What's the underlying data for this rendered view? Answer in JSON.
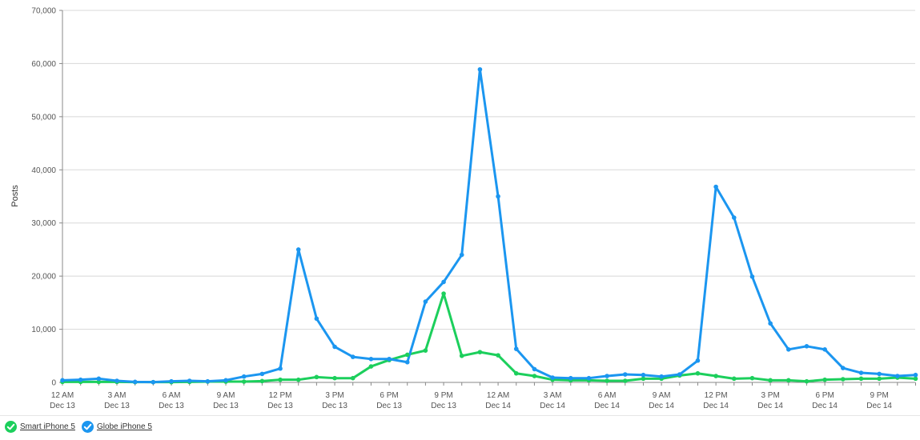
{
  "chart_data": {
    "type": "line",
    "title": "",
    "ylabel": "Posts",
    "xlabel": "",
    "ylim": [
      0,
      70000
    ],
    "yticks": [
      0,
      10000,
      20000,
      30000,
      40000,
      50000,
      60000,
      70000
    ],
    "ytick_labels": [
      "0",
      "10,000",
      "20,000",
      "30,000",
      "40,000",
      "50,000",
      "60,000",
      "70,000"
    ],
    "grid": true,
    "legend_position": "bottom-left",
    "x_hours": [
      0,
      1,
      2,
      3,
      4,
      5,
      6,
      7,
      8,
      9,
      10,
      11,
      12,
      13,
      14,
      15,
      16,
      17,
      18,
      19,
      20,
      21,
      22,
      23,
      24,
      25,
      26,
      27,
      28,
      29,
      30,
      31,
      32,
      33,
      34,
      35,
      36,
      37,
      38,
      39,
      40,
      41,
      42,
      43,
      44,
      45,
      46,
      47
    ],
    "x_tick_labels": [
      {
        "hour": 0,
        "line1": "12 AM",
        "line2": "Dec 13"
      },
      {
        "hour": 3,
        "line1": "3 AM",
        "line2": "Dec 13"
      },
      {
        "hour": 6,
        "line1": "6 AM",
        "line2": "Dec 13"
      },
      {
        "hour": 9,
        "line1": "9 AM",
        "line2": "Dec 13"
      },
      {
        "hour": 12,
        "line1": "12 PM",
        "line2": "Dec 13"
      },
      {
        "hour": 15,
        "line1": "3 PM",
        "line2": "Dec 13"
      },
      {
        "hour": 18,
        "line1": "6 PM",
        "line2": "Dec 13"
      },
      {
        "hour": 21,
        "line1": "9 PM",
        "line2": "Dec 13"
      },
      {
        "hour": 24,
        "line1": "12 AM",
        "line2": "Dec 14"
      },
      {
        "hour": 27,
        "line1": "3 AM",
        "line2": "Dec 14"
      },
      {
        "hour": 30,
        "line1": "6 AM",
        "line2": "Dec 14"
      },
      {
        "hour": 33,
        "line1": "9 AM",
        "line2": "Dec 14"
      },
      {
        "hour": 36,
        "line1": "12 PM",
        "line2": "Dec 14"
      },
      {
        "hour": 39,
        "line1": "3 PM",
        "line2": "Dec 14"
      },
      {
        "hour": 42,
        "line1": "6 PM",
        "line2": "Dec 14"
      },
      {
        "hour": 45,
        "line1": "9 PM",
        "line2": "Dec 14"
      }
    ],
    "series": [
      {
        "name": "Smart iPhone 5",
        "color": "#1ccf5c",
        "values": [
          100,
          100,
          100,
          100,
          50,
          50,
          50,
          100,
          150,
          150,
          150,
          250,
          500,
          500,
          1000,
          800,
          800,
          3000,
          4200,
          5200,
          6000,
          16700,
          5000,
          5700,
          5100,
          1700,
          1200,
          500,
          400,
          400,
          300,
          300,
          700,
          700,
          1300,
          1700,
          1200,
          700,
          800,
          400,
          400,
          200,
          500,
          600,
          700,
          700,
          900,
          700
        ]
      },
      {
        "name": "Globe iPhone 5",
        "color": "#1b96f0",
        "values": [
          400,
          500,
          700,
          300,
          100,
          50,
          200,
          300,
          200,
          400,
          1100,
          1600,
          2600,
          25000,
          12000,
          6700,
          4800,
          4400,
          4400,
          3800,
          15200,
          18900,
          24000,
          58900,
          35000,
          6300,
          2500,
          900,
          800,
          800,
          1200,
          1500,
          1400,
          1100,
          1500,
          4100,
          36800,
          31000,
          19900,
          11100,
          6200,
          6800,
          6200,
          2700,
          1800,
          1600,
          1200,
          1400
        ]
      }
    ]
  },
  "legend": {
    "items": [
      {
        "label": "Smart iPhone 5",
        "color": "#1ccf5c"
      },
      {
        "label": "Globe iPhone 5",
        "color": "#1b96f0"
      }
    ]
  }
}
